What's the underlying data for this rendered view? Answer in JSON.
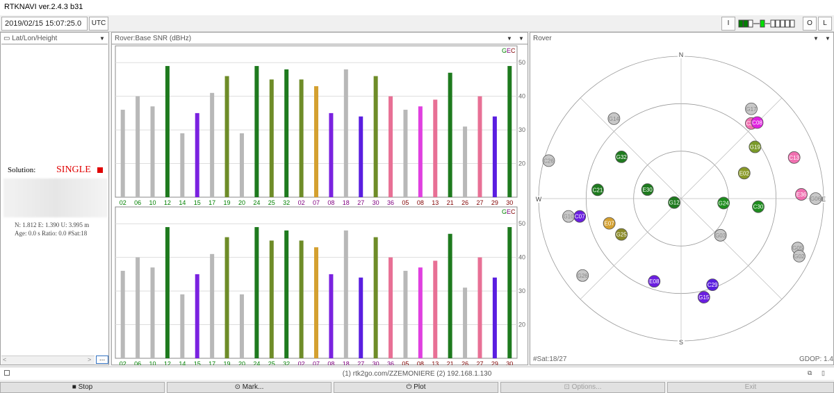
{
  "window": {
    "title": "RTKNAVI ver.2.4.3 b31"
  },
  "toolbar": {
    "datetime": "2019/02/15 15:07:25.0",
    "utc_label": "UTC",
    "i_label": "I",
    "o_label": "O",
    "l_label": "L"
  },
  "left_panel": {
    "header": "Lat/Lon/Height",
    "solution_label": "Solution:",
    "solution_value": "SINGLE",
    "solution_color": "#e00000",
    "stats_line1": "N: 1.812 E: 1.390 U: 3.995 m",
    "stats_line2": "Age: 0.0 s Ratio: 0.0 #Sat:18",
    "more_button": "..."
  },
  "snr_panel": {
    "header": "Rover:Base SNR (dBHz)",
    "legend_g": "G",
    "legend_e": "E",
    "legend_c": "C"
  },
  "sky_panel": {
    "header": "Rover",
    "nsat": "#Sat:18/27",
    "gdop": "GDOP: 1.4",
    "compass": {
      "n": "N",
      "s": "S",
      "e": "E",
      "w": "W"
    }
  },
  "chart_data": [
    {
      "type": "bar",
      "title": "Rover:Base SNR (dBHz)",
      "ylim": [
        10,
        55
      ],
      "yticks": [
        20,
        30,
        40,
        50
      ],
      "categories": [
        "02",
        "06",
        "10",
        "12",
        "14",
        "15",
        "17",
        "19",
        "20",
        "24",
        "25",
        "32",
        "02",
        "07",
        "08",
        "18",
        "27",
        "30",
        "36",
        "05",
        "08",
        "13",
        "21",
        "26",
        "27",
        "29",
        "30"
      ],
      "label_colors": [
        "#008000",
        "#008000",
        "#008000",
        "#008000",
        "#008000",
        "#008000",
        "#008000",
        "#008000",
        "#008000",
        "#008000",
        "#008000",
        "#008000",
        "#800080",
        "#800080",
        "#800080",
        "#800080",
        "#800080",
        "#800080",
        "#800080",
        "#800000",
        "#800000",
        "#800000",
        "#800000",
        "#800000",
        "#800000",
        "#800000",
        "#800000"
      ],
      "bar_colors": [
        "#b8b8b8",
        "#b8b8b8",
        "#b8b8b8",
        "#1e7a1e",
        "#b8b8b8",
        "#7a22e0",
        "#b8b8b8",
        "#6e8c28",
        "#b8b8b8",
        "#1e7a1e",
        "#6e8c28",
        "#1e7a1e",
        "#6e8c28",
        "#d4a030",
        "#7a22e0",
        "#b8b8b8",
        "#5a1ee0",
        "#6e8c28",
        "#e87095",
        "#b8b8b8",
        "#e040e0",
        "#e87095",
        "#1e7a1e",
        "#b8b8b8",
        "#e87095",
        "#5a1ee0",
        "#1e7a1e"
      ],
      "values": [
        36,
        40,
        37,
        49,
        29,
        35,
        41,
        46,
        29,
        49,
        45,
        48,
        45,
        43,
        35,
        48,
        34,
        46,
        40,
        36,
        37,
        39,
        47,
        31,
        40,
        34,
        49
      ]
    },
    {
      "type": "bar",
      "title": "",
      "ylim": [
        10,
        55
      ],
      "yticks": [
        20,
        30,
        40,
        50
      ],
      "categories": [
        "02",
        "06",
        "10",
        "12",
        "14",
        "15",
        "17",
        "19",
        "20",
        "24",
        "25",
        "32",
        "02",
        "07",
        "08",
        "18",
        "27",
        "30",
        "36",
        "05",
        "08",
        "13",
        "21",
        "26",
        "27",
        "29",
        "30"
      ],
      "values": [
        36,
        40,
        37,
        49,
        29,
        35,
        41,
        46,
        29,
        49,
        45,
        48,
        45,
        43,
        35,
        48,
        34,
        46,
        40,
        36,
        37,
        39,
        47,
        31,
        40,
        34,
        49
      ]
    },
    {
      "type": "scatter",
      "title": "Rover",
      "polar": true,
      "satellites": [
        {
          "id": "G17",
          "az": 38,
          "el": 18,
          "color": "#c8c8c8"
        },
        {
          "id": "C27",
          "az": 43,
          "el": 25,
          "color": "#f070b0"
        },
        {
          "id": "C08",
          "az": 45,
          "el": 22,
          "color": "#e020e0"
        },
        {
          "id": "G19",
          "az": 55,
          "el": 33,
          "color": "#7a9a28"
        },
        {
          "id": "C13",
          "az": 70,
          "el": 14,
          "color": "#f070b0"
        },
        {
          "id": "E02",
          "az": 68,
          "el": 47,
          "color": "#8a9a28"
        },
        {
          "id": "E36",
          "az": 88,
          "el": 14,
          "color": "#f070b0"
        },
        {
          "id": "G06",
          "az": 90,
          "el": 5,
          "color": "#c8c8c8"
        },
        {
          "id": "G24",
          "az": 96,
          "el": 63,
          "color": "#1e8c1e"
        },
        {
          "id": "C30",
          "az": 96,
          "el": 41,
          "color": "#1e8c1e"
        },
        {
          "id": "G03",
          "az": 133,
          "el": 56,
          "color": "#c8c8c8"
        },
        {
          "id": "G05",
          "az": 113,
          "el": 10,
          "color": "#c8c8c8"
        },
        {
          "id": "G02",
          "az": 116,
          "el": 7,
          "color": "#c8c8c8"
        },
        {
          "id": "C29",
          "az": 160,
          "el": 32,
          "color": "#5a1ee0"
        },
        {
          "id": "G15",
          "az": 167,
          "el": 26,
          "color": "#6a1ee0"
        },
        {
          "id": "E08",
          "az": 198,
          "el": 35,
          "color": "#6a1ee0"
        },
        {
          "id": "G26",
          "az": 232,
          "el": 11,
          "color": "#c8c8c8"
        },
        {
          "id": "G25",
          "az": 239,
          "el": 46,
          "color": "#8a8a28"
        },
        {
          "id": "E07",
          "az": 251,
          "el": 42,
          "color": "#d4a030"
        },
        {
          "id": "C07",
          "az": 260,
          "el": 25,
          "color": "#6a1ee0"
        },
        {
          "id": "G10",
          "az": 261,
          "el": 18,
          "color": "#c8c8c8"
        },
        {
          "id": "C21",
          "az": 276,
          "el": 37,
          "color": "#1e7a1e"
        },
        {
          "id": "C26",
          "az": 286,
          "el": 3,
          "color": "#c8c8c8"
        },
        {
          "id": "E30",
          "az": 285,
          "el": 68,
          "color": "#1e7a1e"
        },
        {
          "id": "G12",
          "az": 240,
          "el": 85,
          "color": "#1e7a1e"
        },
        {
          "id": "G32",
          "az": 305,
          "el": 44,
          "color": "#1e7a1e"
        },
        {
          "id": "G14",
          "az": 320,
          "el": 24,
          "color": "#c8c8c8"
        }
      ]
    }
  ],
  "status_bar": {
    "text": "(1) rtk2go.com/ZZEMONIERE (2) 192.168.1.130"
  },
  "bottom_buttons": {
    "stop": "Stop",
    "mark": "Mark...",
    "plot": "Plot",
    "options": "Options...",
    "exit": "Exit"
  }
}
